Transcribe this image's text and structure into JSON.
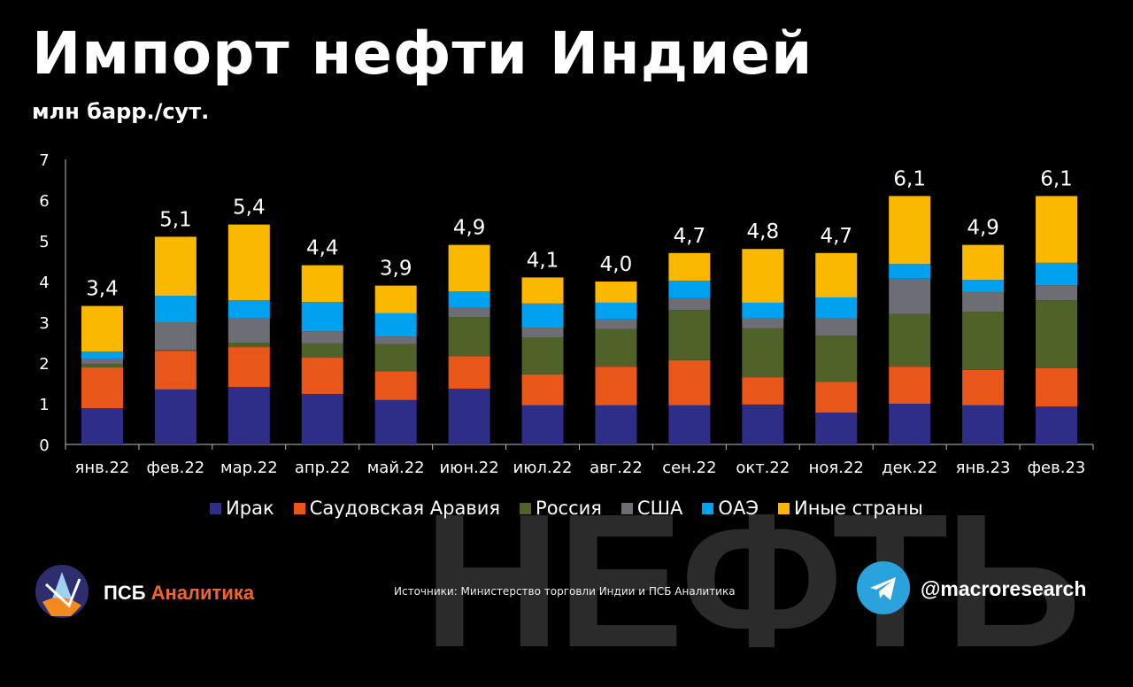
{
  "watermark": "НЕФТЬ",
  "chart_data": {
    "type": "bar",
    "stacked": true,
    "title": "Импорт нефти Индией",
    "subtitle": "млн барр./сут.",
    "xlabel": "",
    "ylabel": "млн барр./сут.",
    "ylim": [
      0,
      7
    ],
    "yticks": [
      "0",
      "1",
      "2",
      "3",
      "4",
      "5",
      "6",
      "7"
    ],
    "grid": false,
    "legend_position": "bottom",
    "categories": [
      "янв.22",
      "фев.22",
      "мар.22",
      "апр.22",
      "май.22",
      "июн.22",
      "июл.22",
      "авг.22",
      "сен.22",
      "окт.22",
      "ноя.22",
      "дек.22",
      "янв.23",
      "фев.23"
    ],
    "totals": [
      3.4,
      5.1,
      5.4,
      4.4,
      3.9,
      4.9,
      4.1,
      4.0,
      4.7,
      4.8,
      4.7,
      6.1,
      4.9,
      6.1
    ],
    "total_labels": [
      "3,4",
      "5,1",
      "5,4",
      "4,4",
      "3,9",
      "4,9",
      "4,1",
      "4,0",
      "4,7",
      "4,8",
      "4,7",
      "6,1",
      "4,9",
      "6,1"
    ],
    "series": [
      {
        "name": "Ирак",
        "color": "#2e2d88",
        "values": [
          0.89,
          1.35,
          1.41,
          1.24,
          1.09,
          1.37,
          0.96,
          0.96,
          0.96,
          0.98,
          0.78,
          1.0,
          0.96,
          0.93
        ]
      },
      {
        "name": "Саудовская Аравия",
        "color": "#e8561a",
        "values": [
          1.0,
          0.95,
          0.98,
          0.89,
          0.71,
          0.8,
          0.76,
          0.95,
          1.11,
          0.67,
          0.76,
          0.91,
          0.87,
          0.94
        ]
      },
      {
        "name": "Россия",
        "color": "#4f6228",
        "values": [
          0.09,
          0.02,
          0.11,
          0.35,
          0.66,
          0.96,
          0.91,
          0.92,
          1.23,
          1.2,
          1.13,
          1.29,
          1.43,
          1.67
        ]
      },
      {
        "name": "США",
        "color": "#6d6e75",
        "values": [
          0.13,
          0.68,
          0.59,
          0.3,
          0.19,
          0.24,
          0.24,
          0.24,
          0.29,
          0.24,
          0.42,
          0.87,
          0.48,
          0.37
        ]
      },
      {
        "name": "ОАЭ",
        "color": "#00a2f0",
        "values": [
          0.17,
          0.65,
          0.45,
          0.72,
          0.57,
          0.39,
          0.59,
          0.41,
          0.43,
          0.39,
          0.52,
          0.36,
          0.3,
          0.55
        ]
      },
      {
        "name": "Иные страны",
        "color": "#fab800",
        "values": [
          1.12,
          1.45,
          1.86,
          0.9,
          0.68,
          1.14,
          0.64,
          0.52,
          0.68,
          1.32,
          1.09,
          1.67,
          0.86,
          1.64
        ]
      }
    ]
  },
  "footer": {
    "brand_part1": "ПСБ",
    "brand_part2": "Аналитика",
    "source": "Источники: Министерство торговли Индии и ПСБ Аналитика",
    "handle": "@macroresearch"
  }
}
